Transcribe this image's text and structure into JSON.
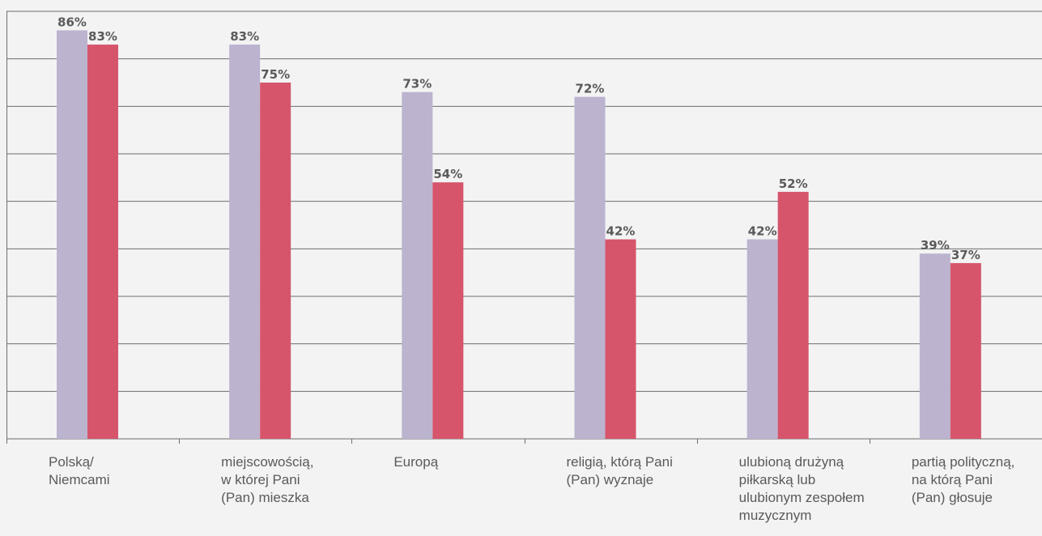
{
  "chart_data": {
    "type": "bar",
    "categories": [
      "Polską/\nNiemcami",
      "miejscowością,\nw której Pani\n(Pan) mieszka",
      "Europą",
      "religią, którą Pani\n(Pan) wyznaje",
      "ulubioną drużyną\npiłkarską lub\nulubionym zespołem\nmuzycznym",
      "partią polityczną,\nna którą Pani\n(Pan) głosuje"
    ],
    "series": [
      {
        "values": [
          86,
          83,
          73,
          72,
          42,
          39
        ],
        "labels": [
          "86%",
          "83%",
          "73%",
          "72%",
          "42%",
          "39%"
        ],
        "color": "#bcb3cf"
      },
      {
        "values": [
          83,
          75,
          54,
          42,
          52,
          37
        ],
        "labels": [
          "83%",
          "75%",
          "54%",
          "42%",
          "52%",
          "37%"
        ],
        "color": "#d6556b"
      }
    ],
    "ylim": [
      0,
      90
    ],
    "grid": true
  }
}
